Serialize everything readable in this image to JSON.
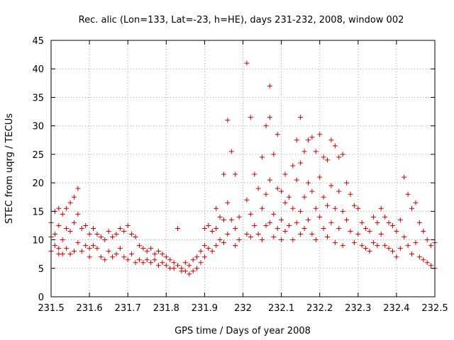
{
  "chart_data": {
    "type": "scatter",
    "title": "Rec. alic (Lon=133, Lat=-23, h=HE), days 231-232, 2008, window 002",
    "xlabel": "GPS time / Days of year 2008",
    "ylabel": "STEC from uqrg / TECUs",
    "xlim": [
      231.5,
      232.5
    ],
    "ylim": [
      0,
      45
    ],
    "xticks": [
      231.5,
      231.6,
      231.7,
      231.8,
      231.9,
      232.0,
      232.1,
      232.2,
      232.3,
      232.4,
      232.5
    ],
    "xtick_labels": [
      "231.5",
      "231.6",
      "231.7",
      "231.8",
      "231.9",
      "232",
      "232.1",
      "232.2",
      "232.3",
      "232.4",
      "232.5"
    ],
    "yticks": [
      0,
      5,
      10,
      15,
      20,
      25,
      30,
      35,
      40,
      45
    ],
    "ytick_labels": [
      "0",
      "5",
      "10",
      "15",
      "20",
      "25",
      "30",
      "35",
      "40",
      "45"
    ],
    "grid": true,
    "marker": "plus",
    "color": "#cc0000",
    "series": [
      {
        "points": [
          [
            231.5,
            13.0
          ],
          [
            231.5,
            10.5
          ],
          [
            231.5,
            8.0
          ],
          [
            231.51,
            15.0
          ],
          [
            231.51,
            11.0
          ],
          [
            231.51,
            9.0
          ],
          [
            231.52,
            15.5
          ],
          [
            231.52,
            12.5
          ],
          [
            231.52,
            8.5
          ],
          [
            231.52,
            7.5
          ],
          [
            231.53,
            14.5
          ],
          [
            231.53,
            10.0
          ],
          [
            231.53,
            7.5
          ],
          [
            231.54,
            15.5
          ],
          [
            231.54,
            12.0
          ],
          [
            231.54,
            8.5
          ],
          [
            231.55,
            16.5
          ],
          [
            231.55,
            11.5
          ],
          [
            231.55,
            7.5
          ],
          [
            231.56,
            17.5
          ],
          [
            231.56,
            13.0
          ],
          [
            231.56,
            8.0
          ],
          [
            231.57,
            19.0
          ],
          [
            231.57,
            14.5
          ],
          [
            231.57,
            9.5
          ],
          [
            231.58,
            12.0
          ],
          [
            231.58,
            8.0
          ],
          [
            231.59,
            12.5
          ],
          [
            231.59,
            9.0
          ],
          [
            231.6,
            11.0
          ],
          [
            231.6,
            8.5
          ],
          [
            231.6,
            7.0
          ],
          [
            231.61,
            12.0
          ],
          [
            231.61,
            9.0
          ],
          [
            231.62,
            11.0
          ],
          [
            231.62,
            8.5
          ],
          [
            231.63,
            10.5
          ],
          [
            231.63,
            7.0
          ],
          [
            231.64,
            10.0
          ],
          [
            231.64,
            6.5
          ],
          [
            231.65,
            11.5
          ],
          [
            231.65,
            8.0
          ],
          [
            231.66,
            10.5
          ],
          [
            231.66,
            7.0
          ],
          [
            231.67,
            11.0
          ],
          [
            231.67,
            7.5
          ],
          [
            231.68,
            12.0
          ],
          [
            231.68,
            8.5
          ],
          [
            231.69,
            11.5
          ],
          [
            231.69,
            7.0
          ],
          [
            231.7,
            12.5
          ],
          [
            231.7,
            6.5
          ],
          [
            231.71,
            11.0
          ],
          [
            231.71,
            7.5
          ],
          [
            231.72,
            10.5
          ],
          [
            231.72,
            6.0
          ],
          [
            231.73,
            9.0
          ],
          [
            231.73,
            6.5
          ],
          [
            231.74,
            8.5
          ],
          [
            231.74,
            6.0
          ],
          [
            231.75,
            8.0
          ],
          [
            231.75,
            6.5
          ],
          [
            231.76,
            8.5
          ],
          [
            231.76,
            6.0
          ],
          [
            231.77,
            7.5
          ],
          [
            231.77,
            6.5
          ],
          [
            231.78,
            8.0
          ],
          [
            231.78,
            5.5
          ],
          [
            231.79,
            7.5
          ],
          [
            231.79,
            6.0
          ],
          [
            231.8,
            7.0
          ],
          [
            231.8,
            5.5
          ],
          [
            231.81,
            6.5
          ],
          [
            231.81,
            5.0
          ],
          [
            231.82,
            6.0
          ],
          [
            231.82,
            5.0
          ],
          [
            231.83,
            12.0
          ],
          [
            231.83,
            5.5
          ],
          [
            231.84,
            5.0
          ],
          [
            231.84,
            4.5
          ],
          [
            231.85,
            6.0
          ],
          [
            231.85,
            4.5
          ],
          [
            231.86,
            5.5
          ],
          [
            231.86,
            4.0
          ],
          [
            231.87,
            6.5
          ],
          [
            231.87,
            4.5
          ],
          [
            231.88,
            7.0
          ],
          [
            231.88,
            5.0
          ],
          [
            231.89,
            8.0
          ],
          [
            231.89,
            6.0
          ],
          [
            231.9,
            12.0
          ],
          [
            231.9,
            9.0
          ],
          [
            231.9,
            7.0
          ],
          [
            231.91,
            12.5
          ],
          [
            231.91,
            8.5
          ],
          [
            231.92,
            11.5
          ],
          [
            231.92,
            8.0
          ],
          [
            231.93,
            15.5
          ],
          [
            231.93,
            12.0
          ],
          [
            231.93,
            9.0
          ],
          [
            231.94,
            14.0
          ],
          [
            231.94,
            10.0
          ],
          [
            231.95,
            21.5
          ],
          [
            231.95,
            13.5
          ],
          [
            231.95,
            9.5
          ],
          [
            231.96,
            31.0
          ],
          [
            231.96,
            16.5
          ],
          [
            231.96,
            11.0
          ],
          [
            231.97,
            25.5
          ],
          [
            231.97,
            13.5
          ],
          [
            231.98,
            21.5
          ],
          [
            231.98,
            12.0
          ],
          [
            231.98,
            9.0
          ],
          [
            231.99,
            14.0
          ],
          [
            231.99,
            10.0
          ],
          [
            232.01,
            41.0
          ],
          [
            232.01,
            17.0
          ],
          [
            232.01,
            11.0
          ],
          [
            232.02,
            31.5
          ],
          [
            232.02,
            14.5
          ],
          [
            232.02,
            10.5
          ],
          [
            232.03,
            21.5
          ],
          [
            232.03,
            12.5
          ],
          [
            232.04,
            19.0
          ],
          [
            232.04,
            11.0
          ],
          [
            232.05,
            24.5
          ],
          [
            232.05,
            15.5
          ],
          [
            232.05,
            10.0
          ],
          [
            232.06,
            30.0
          ],
          [
            232.06,
            18.0
          ],
          [
            232.06,
            12.5
          ],
          [
            232.07,
            37.0
          ],
          [
            232.07,
            31.5
          ],
          [
            232.07,
            20.5
          ],
          [
            232.07,
            13.0
          ],
          [
            232.08,
            25.0
          ],
          [
            232.08,
            14.5
          ],
          [
            232.08,
            10.5
          ],
          [
            232.09,
            28.5
          ],
          [
            232.09,
            19.0
          ],
          [
            232.09,
            12.0
          ],
          [
            232.1,
            18.5
          ],
          [
            232.1,
            13.5
          ],
          [
            232.1,
            10.0
          ],
          [
            232.11,
            21.5
          ],
          [
            232.11,
            16.5
          ],
          [
            232.11,
            11.5
          ],
          [
            232.12,
            17.5
          ],
          [
            232.12,
            12.5
          ],
          [
            232.13,
            23.0
          ],
          [
            232.13,
            15.5
          ],
          [
            232.13,
            10.0
          ],
          [
            232.14,
            27.5
          ],
          [
            232.14,
            20.5
          ],
          [
            232.14,
            13.0
          ],
          [
            232.15,
            31.5
          ],
          [
            232.15,
            23.5
          ],
          [
            232.15,
            15.0
          ],
          [
            232.15,
            11.0
          ],
          [
            232.16,
            25.5
          ],
          [
            232.16,
            17.5
          ],
          [
            232.16,
            12.0
          ],
          [
            232.17,
            27.5
          ],
          [
            232.17,
            20.0
          ],
          [
            232.17,
            13.5
          ],
          [
            232.18,
            28.0
          ],
          [
            232.18,
            18.5
          ],
          [
            232.18,
            11.0
          ],
          [
            232.19,
            25.5
          ],
          [
            232.19,
            15.5
          ],
          [
            232.19,
            10.0
          ],
          [
            232.2,
            28.5
          ],
          [
            232.2,
            21.0
          ],
          [
            232.2,
            14.0
          ],
          [
            232.21,
            24.5
          ],
          [
            232.21,
            17.5
          ],
          [
            232.21,
            12.0
          ],
          [
            232.22,
            24.0
          ],
          [
            232.22,
            16.0
          ],
          [
            232.22,
            10.5
          ],
          [
            232.23,
            27.5
          ],
          [
            232.23,
            19.5
          ],
          [
            232.23,
            13.0
          ],
          [
            232.24,
            26.5
          ],
          [
            232.24,
            15.5
          ],
          [
            232.24,
            9.5
          ],
          [
            232.25,
            24.5
          ],
          [
            232.25,
            18.5
          ],
          [
            232.25,
            12.0
          ],
          [
            232.26,
            25.0
          ],
          [
            232.26,
            15.0
          ],
          [
            232.26,
            9.0
          ],
          [
            232.27,
            20.0
          ],
          [
            232.27,
            13.5
          ],
          [
            232.28,
            18.0
          ],
          [
            232.28,
            11.5
          ],
          [
            232.29,
            16.0
          ],
          [
            232.29,
            9.5
          ],
          [
            232.3,
            15.5
          ],
          [
            232.3,
            11.0
          ],
          [
            232.31,
            13.0
          ],
          [
            232.31,
            9.0
          ],
          [
            232.32,
            12.0
          ],
          [
            232.32,
            8.5
          ],
          [
            232.33,
            11.5
          ],
          [
            232.33,
            8.0
          ],
          [
            232.34,
            14.0
          ],
          [
            232.34,
            9.5
          ],
          [
            232.35,
            13.0
          ],
          [
            232.35,
            9.0
          ],
          [
            232.36,
            15.5
          ],
          [
            232.36,
            11.0
          ],
          [
            232.37,
            14.0
          ],
          [
            232.37,
            9.0
          ],
          [
            232.38,
            13.0
          ],
          [
            232.38,
            8.5
          ],
          [
            232.39,
            12.5
          ],
          [
            232.39,
            8.0
          ],
          [
            232.4,
            11.5
          ],
          [
            232.4,
            7.0
          ],
          [
            232.41,
            13.5
          ],
          [
            232.41,
            8.5
          ],
          [
            232.42,
            21.0
          ],
          [
            232.42,
            10.5
          ],
          [
            232.43,
            18.0
          ],
          [
            232.43,
            9.0
          ],
          [
            232.44,
            15.5
          ],
          [
            232.44,
            7.5
          ],
          [
            232.45,
            16.5
          ],
          [
            232.45,
            9.5
          ],
          [
            232.46,
            13.0
          ],
          [
            232.46,
            7.0
          ],
          [
            232.47,
            11.5
          ],
          [
            232.47,
            6.5
          ],
          [
            232.48,
            10.0
          ],
          [
            232.48,
            6.0
          ],
          [
            232.49,
            9.0
          ],
          [
            232.49,
            5.5
          ],
          [
            232.5,
            9.5
          ],
          [
            232.5,
            5.0
          ]
        ]
      }
    ]
  }
}
